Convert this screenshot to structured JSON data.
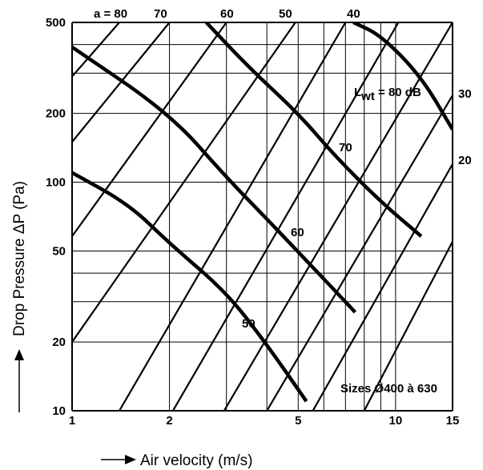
{
  "chart_data": {
    "type": "line",
    "xscale": "log",
    "yscale": "log",
    "xlim": [
      1,
      15
    ],
    "ylim": [
      10,
      500
    ],
    "xlabel": "Air velocity (m/s)",
    "ylabel": "Drop Pressure ΔP (Pa)",
    "x_ticks": [
      {
        "v": 1,
        "label": "1"
      },
      {
        "v": 2,
        "label": "2"
      },
      {
        "v": 5,
        "label": "5"
      },
      {
        "v": 10,
        "label": "10"
      },
      {
        "v": 15,
        "label": "15"
      }
    ],
    "y_ticks": [
      {
        "v": 10,
        "label": "10"
      },
      {
        "v": 20,
        "label": "20"
      },
      {
        "v": 50,
        "label": "50"
      },
      {
        "v": 100,
        "label": "100"
      },
      {
        "v": 200,
        "label": "200"
      },
      {
        "v": 500,
        "label": "500"
      }
    ],
    "x_grid": [
      1,
      2,
      3,
      4,
      5,
      6,
      7,
      8,
      9,
      10,
      15
    ],
    "y_grid": [
      10,
      20,
      30,
      40,
      50,
      100,
      200,
      300,
      400,
      500
    ],
    "aperture_series": [
      {
        "name": "80",
        "points": [
          [
            1.0,
            290
          ],
          [
            1.4,
            500
          ]
        ]
      },
      {
        "name": "70",
        "points": [
          [
            1.0,
            150
          ],
          [
            2.0,
            500
          ]
        ]
      },
      {
        "name": "",
        "points": [
          [
            1.0,
            58
          ],
          [
            3.0,
            500
          ]
        ]
      },
      {
        "name": "60",
        "points": [
          [
            1.0,
            20
          ],
          [
            4.9,
            500
          ]
        ]
      },
      {
        "name": "",
        "points": [
          [
            1.4,
            10
          ],
          [
            7.0,
            500
          ]
        ]
      },
      {
        "name": "50",
        "points": [
          [
            2.05,
            10
          ],
          [
            10.2,
            500
          ]
        ]
      },
      {
        "name": "",
        "points": [
          [
            2.95,
            10
          ],
          [
            15,
            500
          ]
        ]
      },
      {
        "name": "40",
        "points": [
          [
            4.0,
            10
          ],
          [
            15,
            240
          ]
        ]
      },
      {
        "name": "30",
        "points": [
          [
            5.55,
            10
          ],
          [
            15,
            120
          ]
        ]
      },
      {
        "name": "20",
        "points": [
          [
            8.0,
            10
          ],
          [
            15,
            55
          ]
        ]
      }
    ],
    "sound_series": [
      {
        "name": "50",
        "points": [
          [
            1.0,
            110
          ],
          [
            1.5,
            80
          ],
          [
            2.0,
            54
          ],
          [
            3.0,
            33
          ],
          [
            4.0,
            19.5
          ],
          [
            5.3,
            11
          ]
        ]
      },
      {
        "name": "60",
        "points": [
          [
            1.0,
            390
          ],
          [
            2.0,
            200
          ],
          [
            3.0,
            105
          ],
          [
            4.0,
            69
          ],
          [
            5.5,
            43
          ],
          [
            7.5,
            27
          ]
        ]
      },
      {
        "name": "70",
        "points": [
          [
            2.6,
            500
          ],
          [
            3.5,
            320
          ],
          [
            5.0,
            200
          ],
          [
            6.5,
            130
          ],
          [
            9.0,
            82
          ],
          [
            12.0,
            58
          ]
        ]
      },
      {
        "name": "80 dB",
        "points": [
          [
            7.4,
            500
          ],
          [
            9.0,
            440
          ],
          [
            12.0,
            290
          ],
          [
            15.0,
            170
          ]
        ]
      }
    ],
    "annotations": {
      "a_prefix": "a = ",
      "lwt_main": "L",
      "lwt_sub": "wt",
      "lwt_tail": " = 80 dB",
      "sizes": "Sizes Ø400 à 630"
    }
  }
}
